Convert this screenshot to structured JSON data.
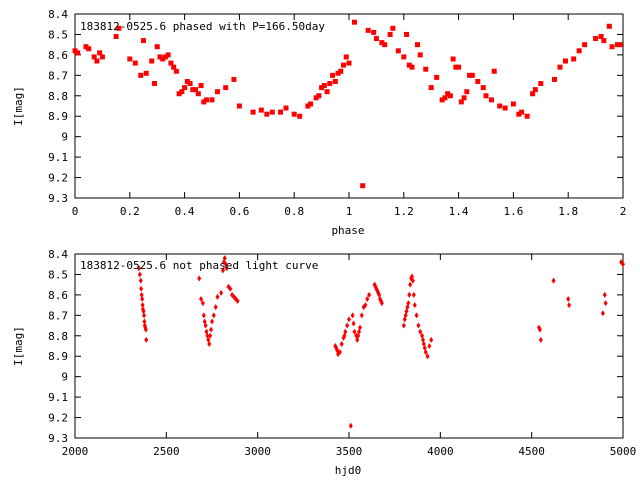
{
  "chart_data": [
    {
      "type": "scatter",
      "title": "183812-0525.6 phased with P=166.50day",
      "xlabel": "phase",
      "ylabel": "I[mag]",
      "xlim": [
        0,
        2
      ],
      "ylim": [
        8.4,
        9.3
      ],
      "y_inverted": true,
      "xticks": [
        "0",
        "0.2",
        "0.4",
        "0.6",
        "0.8",
        "1",
        "1.2",
        "1.4",
        "1.6",
        "1.8",
        "2"
      ],
      "yticks": [
        "8.4",
        "8.5",
        "8.6",
        "8.7",
        "8.8",
        "8.9",
        "9",
        "9.1",
        "9.2",
        "9.3"
      ],
      "marker": "square",
      "color": "#ff0000",
      "grid": false,
      "x": [
        0.0,
        0.01,
        0.04,
        0.05,
        0.07,
        0.08,
        0.09,
        0.1,
        0.15,
        0.16,
        0.2,
        0.22,
        0.24,
        0.25,
        0.26,
        0.28,
        0.29,
        0.3,
        0.31,
        0.32,
        0.33,
        0.34,
        0.35,
        0.36,
        0.37,
        0.38,
        0.39,
        0.4,
        0.41,
        0.42,
        0.43,
        0.44,
        0.45,
        0.46,
        0.47,
        0.48,
        0.5,
        0.52,
        0.55,
        0.58,
        0.6,
        0.65,
        0.68,
        0.7,
        0.72,
        0.75,
        0.77,
        0.8,
        0.82,
        0.85,
        0.86,
        0.88,
        0.89,
        0.9,
        0.91,
        0.92,
        0.93,
        0.94,
        0.95,
        0.96,
        0.97,
        0.98,
        0.99,
        1.0,
        1.02,
        1.05,
        1.07,
        1.09,
        1.1,
        1.12,
        1.13,
        1.15,
        1.16,
        1.18,
        1.2,
        1.21,
        1.22,
        1.23,
        1.25,
        1.26,
        1.28,
        1.3,
        1.32,
        1.34,
        1.35,
        1.36,
        1.37,
        1.38,
        1.39,
        1.4,
        1.41,
        1.42,
        1.43,
        1.44,
        1.45,
        1.47,
        1.49,
        1.5,
        1.52,
        1.53,
        1.55,
        1.57,
        1.6,
        1.62,
        1.63,
        1.65,
        1.67,
        1.68,
        1.7,
        1.75,
        1.77,
        1.79,
        1.82,
        1.84,
        1.86,
        1.9,
        1.92,
        1.93,
        1.95,
        1.96,
        1.98,
        1.99
      ],
      "y": [
        8.58,
        8.59,
        8.56,
        8.57,
        8.61,
        8.63,
        8.59,
        8.61,
        8.51,
        8.47,
        8.62,
        8.64,
        8.7,
        8.53,
        8.69,
        8.63,
        8.74,
        8.56,
        8.61,
        8.62,
        8.61,
        8.6,
        8.64,
        8.66,
        8.68,
        8.79,
        8.78,
        8.76,
        8.73,
        8.74,
        8.77,
        8.77,
        8.79,
        8.75,
        8.83,
        8.82,
        8.82,
        8.78,
        8.76,
        8.72,
        8.85,
        8.88,
        8.87,
        8.89,
        8.88,
        8.88,
        8.86,
        8.89,
        8.9,
        8.85,
        8.84,
        8.81,
        8.8,
        8.76,
        8.75,
        8.78,
        8.74,
        8.7,
        8.73,
        8.69,
        8.68,
        8.65,
        8.61,
        8.64,
        8.44,
        9.24,
        8.48,
        8.49,
        8.52,
        8.54,
        8.55,
        8.5,
        8.47,
        8.58,
        8.61,
        8.5,
        8.65,
        8.66,
        8.55,
        8.6,
        8.67,
        8.76,
        8.71,
        8.82,
        8.81,
        8.79,
        8.8,
        8.62,
        8.66,
        8.66,
        8.83,
        8.81,
        8.78,
        8.7,
        8.7,
        8.73,
        8.76,
        8.8,
        8.82,
        8.68,
        8.85,
        8.86,
        8.84,
        8.89,
        8.88,
        8.9,
        8.79,
        8.77,
        8.74,
        8.72,
        8.66,
        8.63,
        8.62,
        8.58,
        8.55,
        8.52,
        8.51,
        8.53,
        8.46,
        8.56,
        8.55,
        8.55
      ]
    },
    {
      "type": "scatter",
      "title": "183812-0525.6 not phased light curve",
      "xlabel": "hjd0",
      "ylabel": "I[mag]",
      "xlim": [
        2000,
        5000
      ],
      "ylim": [
        8.4,
        9.3
      ],
      "y_inverted": true,
      "xticks": [
        "2000",
        "2500",
        "3000",
        "3500",
        "4000",
        "4500",
        "5000"
      ],
      "yticks": [
        "8.4",
        "8.5",
        "8.6",
        "8.7",
        "8.8",
        "8.9",
        "9",
        "9.1",
        "9.2",
        "9.3"
      ],
      "marker": "diamond",
      "color": "#ff0000",
      "grid": false,
      "x": [
        2350,
        2355,
        2360,
        2362,
        2365,
        2368,
        2370,
        2372,
        2375,
        2378,
        2380,
        2382,
        2385,
        2388,
        2390,
        2680,
        2690,
        2700,
        2705,
        2710,
        2715,
        2720,
        2725,
        2730,
        2735,
        2740,
        2745,
        2750,
        2760,
        2770,
        2780,
        2800,
        2810,
        2815,
        2820,
        2825,
        2830,
        2840,
        2850,
        2860,
        2870,
        2880,
        2890,
        3425,
        3430,
        3435,
        3440,
        3450,
        3460,
        3470,
        3475,
        3480,
        3490,
        3500,
        3510,
        3520,
        3525,
        3530,
        3540,
        3545,
        3550,
        3555,
        3560,
        3570,
        3580,
        3590,
        3600,
        3610,
        3640,
        3645,
        3650,
        3655,
        3660,
        3665,
        3670,
        3675,
        3680,
        3800,
        3805,
        3810,
        3815,
        3820,
        3825,
        3830,
        3835,
        3840,
        3845,
        3850,
        3855,
        3860,
        3870,
        3880,
        3890,
        3900,
        3905,
        3910,
        3915,
        3920,
        3930,
        3940,
        3950,
        4540,
        4545,
        4550,
        4620,
        4700,
        4705,
        4890,
        4900,
        4905,
        4990,
        5000
      ],
      "y": [
        8.47,
        8.5,
        8.53,
        8.57,
        8.6,
        8.62,
        8.65,
        8.67,
        8.68,
        8.7,
        8.73,
        8.75,
        8.76,
        8.77,
        8.82,
        8.52,
        8.62,
        8.64,
        8.7,
        8.73,
        8.75,
        8.78,
        8.8,
        8.82,
        8.84,
        8.8,
        8.77,
        8.73,
        8.7,
        8.66,
        8.61,
        8.59,
        8.48,
        8.44,
        8.42,
        8.45,
        8.47,
        8.56,
        8.57,
        8.6,
        8.61,
        8.62,
        8.63,
        8.85,
        8.86,
        8.87,
        8.89,
        8.88,
        8.84,
        8.81,
        8.8,
        8.78,
        8.75,
        8.72,
        9.24,
        8.7,
        8.74,
        8.78,
        8.8,
        8.82,
        8.8,
        8.78,
        8.76,
        8.7,
        8.66,
        8.65,
        8.62,
        8.6,
        8.55,
        8.56,
        8.57,
        8.58,
        8.59,
        8.6,
        8.62,
        8.63,
        8.64,
        8.75,
        8.72,
        8.7,
        8.68,
        8.66,
        8.64,
        8.6,
        8.55,
        8.52,
        8.51,
        8.53,
        8.6,
        8.65,
        8.7,
        8.75,
        8.78,
        8.8,
        8.82,
        8.84,
        8.86,
        8.88,
        8.9,
        8.85,
        8.82,
        8.76,
        8.77,
        8.82,
        8.53,
        8.62,
        8.65,
        8.69,
        8.6,
        8.64,
        8.44,
        8.45
      ]
    }
  ]
}
